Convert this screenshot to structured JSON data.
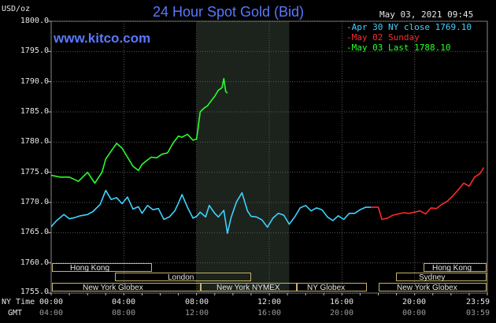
{
  "header": {
    "unit": "USD/oz",
    "title": "24 Hour Spot Gold (Bid)",
    "datetime": "May 03, 2021 09:45",
    "watermark": "www.kitco.com"
  },
  "legend": [
    {
      "text": "-Apr 30 NY close 1769.10",
      "color": "#3fd2ff"
    },
    {
      "text": "-May 02 Sunday",
      "color": "#ff2a2a"
    },
    {
      "text": "-May 03 Last 1788.10",
      "color": "#2bff2b"
    }
  ],
  "bottom_labels": {
    "ny_time": "NY Time",
    "gmt": "GMT"
  },
  "sessions": [
    {
      "label": "Hong Kong",
      "row": 1
    },
    {
      "label": "London",
      "row": 2
    },
    {
      "label": "New York Globex",
      "row": 3
    },
    {
      "label": "New York NYMEX",
      "row": 3
    },
    {
      "label": "NY Globex",
      "row": 3
    },
    {
      "label": "Hong Kong",
      "row": 1
    },
    {
      "label": "Sydney",
      "row": 2
    },
    {
      "label": "New York Globex",
      "row": 3
    }
  ],
  "chart_data": {
    "type": "line",
    "title": "24 Hour Spot Gold (Bid)",
    "ylabel": "USD/oz",
    "ylim": [
      1755.0,
      1800.0
    ],
    "yticks": [
      "1800.0",
      "1795.0",
      "1790.0",
      "1785.0",
      "1780.0",
      "1775.0",
      "1770.0",
      "1765.0",
      "1760.0",
      "1755.0"
    ],
    "xlim": [
      0,
      24
    ],
    "xticks_ny": [
      "00:00",
      "04:00",
      "08:00",
      "12:00",
      "16:00",
      "20:00",
      "23:59"
    ],
    "xticks_gmt": [
      "04:00",
      "08:00",
      "12:00",
      "16:00",
      "20:00",
      "00:00",
      "03:59"
    ],
    "highlight_hours": [
      8,
      13.1
    ],
    "grid": true,
    "series": [
      {
        "name": "Apr 30 NY close 1769.10",
        "color": "#3fd2ff",
        "x": [
          0,
          0.3,
          0.7,
          1.0,
          1.3,
          1.6,
          2.0,
          2.3,
          2.7,
          3.0,
          3.3,
          3.6,
          3.9,
          4.2,
          4.5,
          4.8,
          5.0,
          5.3,
          5.6,
          5.9,
          6.2,
          6.5,
          6.8,
          7.0,
          7.2,
          7.5,
          7.8,
          8.0,
          8.2,
          8.5,
          8.7,
          9.0,
          9.2,
          9.5,
          9.7,
          9.9,
          10.2,
          10.5,
          10.8,
          11.0,
          11.3,
          11.6,
          11.9,
          12.2,
          12.5,
          12.8,
          13.1,
          13.4,
          13.7,
          14.0,
          14.3,
          14.6,
          14.9,
          15.2,
          15.5,
          15.8,
          16.1,
          16.4,
          16.7,
          17.0,
          17.3,
          17.6
        ],
        "values": [
          1766.0,
          1767.0,
          1768.0,
          1767.3,
          1767.5,
          1767.8,
          1768.0,
          1768.5,
          1769.7,
          1772.0,
          1770.5,
          1770.8,
          1769.8,
          1770.9,
          1768.9,
          1769.3,
          1768.2,
          1769.5,
          1768.8,
          1769.0,
          1767.2,
          1767.6,
          1768.6,
          1769.9,
          1771.3,
          1769.2,
          1767.4,
          1767.7,
          1768.4,
          1767.6,
          1769.5,
          1768.2,
          1767.6,
          1768.7,
          1764.9,
          1767.5,
          1770.1,
          1771.6,
          1768.6,
          1767.7,
          1767.6,
          1767.1,
          1765.9,
          1767.4,
          1768.2,
          1767.9,
          1766.4,
          1767.6,
          1769.1,
          1769.5,
          1768.6,
          1769.1,
          1768.8,
          1767.6,
          1767.0,
          1767.8,
          1767.2,
          1768.2,
          1768.2,
          1768.8,
          1769.2,
          1769.2
        ]
      },
      {
        "name": "May 02 Sunday",
        "color": "#ff2a2a",
        "x": [
          17.6,
          18.0,
          18.2,
          18.5,
          18.8,
          19.1,
          19.4,
          19.7,
          20.0,
          20.3,
          20.6,
          20.9,
          21.2,
          21.5,
          21.8,
          22.1,
          22.4,
          22.7,
          23.0,
          23.3,
          23.6,
          23.8
        ],
        "values": [
          1769.2,
          1769.2,
          1767.2,
          1767.4,
          1767.9,
          1768.1,
          1768.3,
          1768.2,
          1768.4,
          1768.6,
          1768.1,
          1769.1,
          1769.0,
          1769.7,
          1770.2,
          1771.1,
          1772.1,
          1773.2,
          1772.7,
          1774.2,
          1774.8,
          1775.8
        ]
      },
      {
        "name": "May 03 Last 1788.10",
        "color": "#2bff2b",
        "x": [
          0,
          0.5,
          1.0,
          1.5,
          2.0,
          2.4,
          2.8,
          3.0,
          3.3,
          3.6,
          3.9,
          4.2,
          4.5,
          4.8,
          5.0,
          5.2,
          5.5,
          5.8,
          6.1,
          6.4,
          6.7,
          7.0,
          7.2,
          7.5,
          7.8,
          8.0,
          8.2,
          8.4,
          8.6,
          8.8,
          9.0,
          9.2,
          9.4,
          9.5,
          9.6,
          9.7
        ],
        "values": [
          1774.5,
          1774.2,
          1774.2,
          1773.5,
          1775.0,
          1773.2,
          1775.0,
          1777.2,
          1778.5,
          1779.8,
          1779.0,
          1777.5,
          1776.0,
          1775.3,
          1776.3,
          1776.8,
          1777.5,
          1777.4,
          1778.0,
          1778.2,
          1779.8,
          1781.0,
          1780.8,
          1781.3,
          1780.3,
          1780.5,
          1785.0,
          1785.6,
          1786.0,
          1786.8,
          1787.6,
          1788.6,
          1789.0,
          1790.5,
          1788.4,
          1788.1
        ]
      }
    ]
  }
}
